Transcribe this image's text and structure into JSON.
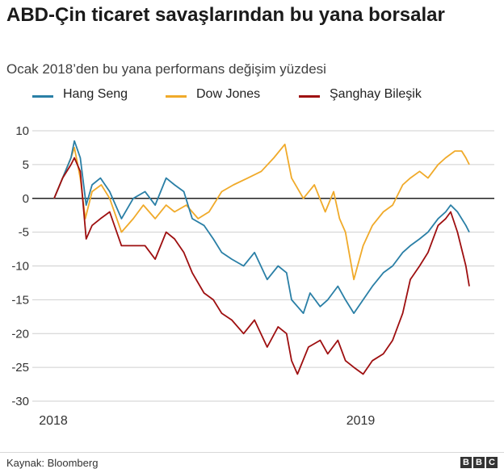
{
  "title": "ABD-Çin ticaret savaşlarından bu yana borsalar",
  "subtitle": "Ocak 2018’den bu yana performans değişim yüzdesi",
  "source": "Kaynak: Bloomberg",
  "logo": "BBC",
  "colors": {
    "hang_seng": "#2a7fa6",
    "dow_jones": "#f0aa2a",
    "shanghai": "#9e0f10",
    "zero_line": "#222222",
    "grid": "#cfcfcf"
  },
  "chart_data": {
    "type": "line",
    "title": "ABD-Çin ticaret savaşlarından bu yana borsalar",
    "subtitle": "Ocak 2018’den bu yana performans değişim yüzdesi",
    "xlabel": "",
    "ylabel": "",
    "ylim": [
      -30,
      10
    ],
    "yticks": [
      10,
      5,
      0,
      -5,
      -10,
      -15,
      -20,
      -25,
      -30
    ],
    "xlim": [
      "2018-01",
      "2019-05"
    ],
    "xtick_labels": [
      {
        "label": "2018",
        "x": "2018-01"
      },
      {
        "label": "2019",
        "x": "2019-01"
      }
    ],
    "grid": true,
    "legend": "top",
    "series": [
      {
        "name": "Hang Seng",
        "color": "#2a7fa6",
        "points": [
          [
            "2018-01-02",
            0
          ],
          [
            "2018-01-12",
            3
          ],
          [
            "2018-01-22",
            6
          ],
          [
            "2018-01-26",
            8.5
          ],
          [
            "2018-02-02",
            6
          ],
          [
            "2018-02-09",
            -1
          ],
          [
            "2018-02-16",
            2
          ],
          [
            "2018-02-26",
            3
          ],
          [
            "2018-03-09",
            1
          ],
          [
            "2018-03-23",
            -3
          ],
          [
            "2018-04-06",
            0
          ],
          [
            "2018-04-20",
            1
          ],
          [
            "2018-05-02",
            -1
          ],
          [
            "2018-05-15",
            3
          ],
          [
            "2018-05-25",
            2
          ],
          [
            "2018-06-05",
            1
          ],
          [
            "2018-06-15",
            -3
          ],
          [
            "2018-06-29",
            -4
          ],
          [
            "2018-07-10",
            -6
          ],
          [
            "2018-07-20",
            -8
          ],
          [
            "2018-08-01",
            -9
          ],
          [
            "2018-08-15",
            -10
          ],
          [
            "2018-08-28",
            -8
          ],
          [
            "2018-09-12",
            -12
          ],
          [
            "2018-09-25",
            -10
          ],
          [
            "2018-10-05",
            -11
          ],
          [
            "2018-10-11",
            -15
          ],
          [
            "2018-10-25",
            -17
          ],
          [
            "2018-11-02",
            -14
          ],
          [
            "2018-11-14",
            -16
          ],
          [
            "2018-11-23",
            -15
          ],
          [
            "2018-12-05",
            -13
          ],
          [
            "2018-12-14",
            -15
          ],
          [
            "2018-12-24",
            -17
          ],
          [
            "2019-01-04",
            -15
          ],
          [
            "2019-01-15",
            -13
          ],
          [
            "2019-01-28",
            -11
          ],
          [
            "2019-02-08",
            -10
          ],
          [
            "2019-02-20",
            -8
          ],
          [
            "2019-03-01",
            -7
          ],
          [
            "2019-03-12",
            -6
          ],
          [
            "2019-03-22",
            -5
          ],
          [
            "2019-04-03",
            -3
          ],
          [
            "2019-04-12",
            -2
          ],
          [
            "2019-04-18",
            -1
          ],
          [
            "2019-04-26",
            -2
          ],
          [
            "2019-05-06",
            -4
          ],
          [
            "2019-05-10",
            -5
          ]
        ]
      },
      {
        "name": "Dow Jones",
        "color": "#f0aa2a",
        "points": [
          [
            "2018-01-02",
            0
          ],
          [
            "2018-01-12",
            3
          ],
          [
            "2018-01-22",
            6
          ],
          [
            "2018-01-26",
            7.5
          ],
          [
            "2018-02-02",
            3
          ],
          [
            "2018-02-08",
            -3
          ],
          [
            "2018-02-16",
            1
          ],
          [
            "2018-02-27",
            2
          ],
          [
            "2018-03-09",
            0
          ],
          [
            "2018-03-23",
            -5
          ],
          [
            "2018-04-06",
            -3
          ],
          [
            "2018-04-18",
            -1
          ],
          [
            "2018-05-02",
            -3
          ],
          [
            "2018-05-15",
            -1
          ],
          [
            "2018-05-25",
            -2
          ],
          [
            "2018-06-08",
            -1
          ],
          [
            "2018-06-22",
            -3
          ],
          [
            "2018-07-05",
            -2
          ],
          [
            "2018-07-20",
            1
          ],
          [
            "2018-08-03",
            2
          ],
          [
            "2018-08-20",
            3
          ],
          [
            "2018-09-05",
            4
          ],
          [
            "2018-09-20",
            6
          ],
          [
            "2018-10-03",
            8
          ],
          [
            "2018-10-11",
            3
          ],
          [
            "2018-10-25",
            0
          ],
          [
            "2018-11-07",
            2
          ],
          [
            "2018-11-20",
            -2
          ],
          [
            "2018-11-30",
            1
          ],
          [
            "2018-12-07",
            -3
          ],
          [
            "2018-12-14",
            -5
          ],
          [
            "2018-12-24",
            -12
          ],
          [
            "2019-01-04",
            -7
          ],
          [
            "2019-01-15",
            -4
          ],
          [
            "2019-01-28",
            -2
          ],
          [
            "2019-02-08",
            -1
          ],
          [
            "2019-02-20",
            2
          ],
          [
            "2019-03-01",
            3
          ],
          [
            "2019-03-12",
            4
          ],
          [
            "2019-03-22",
            3
          ],
          [
            "2019-04-03",
            5
          ],
          [
            "2019-04-12",
            6
          ],
          [
            "2019-04-23",
            7
          ],
          [
            "2019-05-01",
            7
          ],
          [
            "2019-05-06",
            6
          ],
          [
            "2019-05-10",
            5
          ]
        ]
      },
      {
        "name": "Şanghay Bileşik",
        "color": "#9e0f10",
        "points": [
          [
            "2018-01-02",
            0
          ],
          [
            "2018-01-12",
            3
          ],
          [
            "2018-01-22",
            5
          ],
          [
            "2018-01-26",
            6
          ],
          [
            "2018-02-02",
            4
          ],
          [
            "2018-02-09",
            -6
          ],
          [
            "2018-02-16",
            -4
          ],
          [
            "2018-02-26",
            -3
          ],
          [
            "2018-03-09",
            -2
          ],
          [
            "2018-03-23",
            -7
          ],
          [
            "2018-04-06",
            -7
          ],
          [
            "2018-04-20",
            -7
          ],
          [
            "2018-05-02",
            -9
          ],
          [
            "2018-05-15",
            -5
          ],
          [
            "2018-05-25",
            -6
          ],
          [
            "2018-06-05",
            -8
          ],
          [
            "2018-06-15",
            -11
          ],
          [
            "2018-06-29",
            -14
          ],
          [
            "2018-07-10",
            -15
          ],
          [
            "2018-07-20",
            -17
          ],
          [
            "2018-08-01",
            -18
          ],
          [
            "2018-08-15",
            -20
          ],
          [
            "2018-08-28",
            -18
          ],
          [
            "2018-09-12",
            -22
          ],
          [
            "2018-09-25",
            -19
          ],
          [
            "2018-10-05",
            -20
          ],
          [
            "2018-10-11",
            -24
          ],
          [
            "2018-10-18",
            -26
          ],
          [
            "2018-10-31",
            -22
          ],
          [
            "2018-11-14",
            -21
          ],
          [
            "2018-11-23",
            -23
          ],
          [
            "2018-12-05",
            -21
          ],
          [
            "2018-12-14",
            -24
          ],
          [
            "2018-12-24",
            -25
          ],
          [
            "2019-01-04",
            -26
          ],
          [
            "2019-01-15",
            -24
          ],
          [
            "2019-01-28",
            -23
          ],
          [
            "2019-02-08",
            -21
          ],
          [
            "2019-02-20",
            -17
          ],
          [
            "2019-03-01",
            -12
          ],
          [
            "2019-03-12",
            -10
          ],
          [
            "2019-03-22",
            -8
          ],
          [
            "2019-04-03",
            -4
          ],
          [
            "2019-04-12",
            -3
          ],
          [
            "2019-04-18",
            -2
          ],
          [
            "2019-04-26",
            -5
          ],
          [
            "2019-05-06",
            -10
          ],
          [
            "2019-05-10",
            -13
          ]
        ]
      }
    ]
  }
}
